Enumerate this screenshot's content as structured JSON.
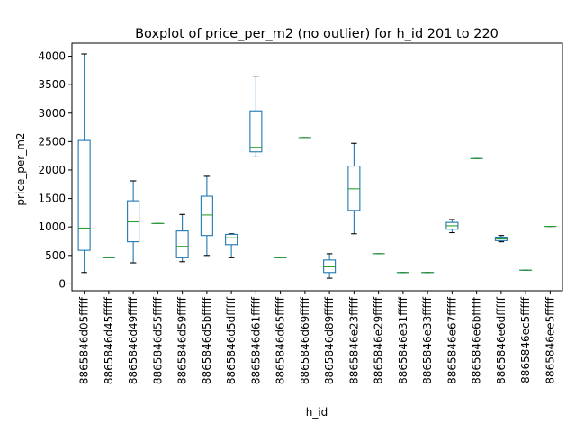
{
  "chart_data": {
    "type": "boxplot",
    "title": "Boxplot of price_per_m2 (no outlier) for h_id 201 to 220",
    "xlabel": "h_id",
    "ylabel": "price_per_m2",
    "ylim": [
      -120,
      4230
    ],
    "yticks": [
      0,
      500,
      1000,
      1500,
      2000,
      2500,
      3000,
      3500,
      4000
    ],
    "grid": false,
    "box_color": "#1f77b4",
    "median_color": "#2ca02c",
    "whisker_color": "#1f77b4",
    "boxes": [
      {
        "label": "8865846d05fffff",
        "whislo": 200,
        "q1": 590,
        "med": 980,
        "q3": 2520,
        "whishi": 4040
      },
      {
        "label": "8865846d45fffff",
        "whislo": 460,
        "q1": 460,
        "med": 460,
        "q3": 460,
        "whishi": 460
      },
      {
        "label": "8865846d49fffff",
        "whislo": 370,
        "q1": 740,
        "med": 1090,
        "q3": 1460,
        "whishi": 1810
      },
      {
        "label": "8865846d55fffff",
        "whislo": 1060,
        "q1": 1060,
        "med": 1060,
        "q3": 1060,
        "whishi": 1060
      },
      {
        "label": "8865846d59fffff",
        "whislo": 390,
        "q1": 460,
        "med": 660,
        "q3": 930,
        "whishi": 1220
      },
      {
        "label": "8865846d5bfffff",
        "whislo": 500,
        "q1": 850,
        "med": 1210,
        "q3": 1540,
        "whishi": 1890
      },
      {
        "label": "8865846d5dfffff",
        "whislo": 460,
        "q1": 690,
        "med": 810,
        "q3": 870,
        "whishi": 880
      },
      {
        "label": "8865846d61fffff",
        "whislo": 2230,
        "q1": 2320,
        "med": 2400,
        "q3": 3040,
        "whishi": 3650
      },
      {
        "label": "8865846d65fffff",
        "whislo": 460,
        "q1": 460,
        "med": 460,
        "q3": 460,
        "whishi": 460
      },
      {
        "label": "8865846d69fffff",
        "whislo": 2570,
        "q1": 2570,
        "med": 2570,
        "q3": 2570,
        "whishi": 2570
      },
      {
        "label": "8865846d89fffff",
        "whislo": 100,
        "q1": 200,
        "med": 300,
        "q3": 420,
        "whishi": 530
      },
      {
        "label": "8865846e23fffff",
        "whislo": 880,
        "q1": 1290,
        "med": 1670,
        "q3": 2070,
        "whishi": 2470
      },
      {
        "label": "8865846e29fffff",
        "whislo": 530,
        "q1": 530,
        "med": 530,
        "q3": 530,
        "whishi": 530
      },
      {
        "label": "8865846e31fffff",
        "whislo": 200,
        "q1": 200,
        "med": 200,
        "q3": 200,
        "whishi": 200
      },
      {
        "label": "8865846e33fffff",
        "whislo": 200,
        "q1": 200,
        "med": 200,
        "q3": 200,
        "whishi": 200
      },
      {
        "label": "8865846e67fffff",
        "whislo": 900,
        "q1": 960,
        "med": 1020,
        "q3": 1080,
        "whishi": 1130
      },
      {
        "label": "8865846e6bfffff",
        "whislo": 2200,
        "q1": 2200,
        "med": 2200,
        "q3": 2200,
        "whishi": 2200
      },
      {
        "label": "8865846e6dfffff",
        "whislo": 740,
        "q1": 760,
        "med": 790,
        "q3": 820,
        "whishi": 850
      },
      {
        "label": "8865846ec5fffff",
        "whislo": 240,
        "q1": 240,
        "med": 240,
        "q3": 240,
        "whishi": 240
      },
      {
        "label": "8865846ee5fffff",
        "whislo": 1010,
        "q1": 1010,
        "med": 1010,
        "q3": 1010,
        "whishi": 1010
      }
    ]
  }
}
